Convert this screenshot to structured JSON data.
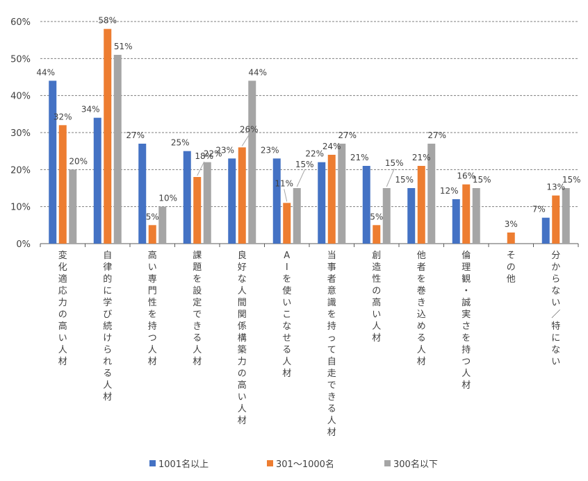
{
  "chart_data": {
    "type": "bar",
    "categories": [
      "変化適応力の高い人材",
      "自律的に学び続けられる人材",
      "高い専門性を持つ人材",
      "課題を設定できる人材",
      "良好な人間関係構築力の高い人材",
      "AIを使いこなせる人材",
      "当事者意識を持って自走できる人材",
      "創造性の高い人材",
      "他者を巻き込める人材",
      "倫理観・誠実さを持つ人材",
      "その他",
      "分からない／特にない"
    ],
    "series": [
      {
        "name": "1001名以上",
        "color": "#4472C4",
        "values": [
          44,
          34,
          27,
          25,
          23,
          23,
          22,
          21,
          15,
          12,
          null,
          7
        ]
      },
      {
        "name": "301〜1000名",
        "color": "#ED7D31",
        "values": [
          32,
          58,
          5,
          18,
          26,
          11,
          24,
          5,
          21,
          16,
          3,
          13
        ]
      },
      {
        "name": "300名以下",
        "color": "#A5A5A5",
        "values": [
          20,
          51,
          10,
          22,
          44,
          15,
          27,
          15,
          27,
          15,
          null,
          15
        ]
      }
    ],
    "yticks": [
      "0%",
      "10%",
      "20%",
      "30%",
      "40%",
      "50%",
      "60%"
    ],
    "ylim": [
      0,
      60
    ],
    "unit": "%",
    "grid": true,
    "legend": "bottom"
  }
}
